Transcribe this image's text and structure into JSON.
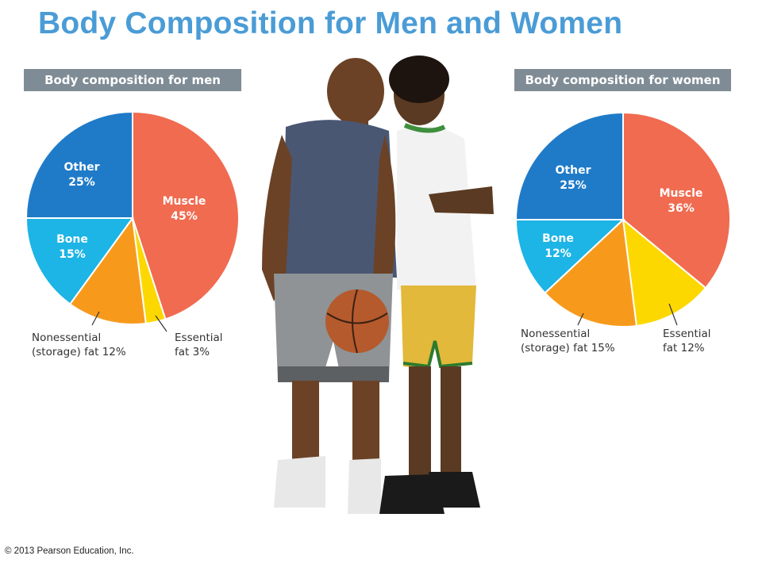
{
  "page": {
    "title": "Body Composition for Men and Women",
    "copyright": "© 2013 Pearson Education, Inc."
  },
  "colors": {
    "title": "#4a9cd6",
    "banner": "#7f8c95",
    "muscle": "#f06b50",
    "essential_fat": "#fcd800",
    "nonessential_fat": "#f79a1c",
    "bone": "#1db4e6",
    "other": "#1f7bc8"
  },
  "chart_data": [
    {
      "type": "pie",
      "title": "Body composition for men",
      "slices": [
        {
          "label": "Muscle",
          "value": 45,
          "text": "Muscle",
          "pct": "45%",
          "color": "#f06b50"
        },
        {
          "label": "Essential fat",
          "value": 3,
          "text": "Essential\nfat 3%",
          "color": "#fcd800"
        },
        {
          "label": "Nonessential (storage) fat",
          "value": 12,
          "text": "Nonessential\n(storage) fat 12%",
          "color": "#f79a1c"
        },
        {
          "label": "Bone",
          "value": 15,
          "text": "Bone",
          "pct": "15%",
          "color": "#1db4e6"
        },
        {
          "label": "Other",
          "value": 25,
          "text": "Other",
          "pct": "25%",
          "color": "#1f7bc8"
        }
      ]
    },
    {
      "type": "pie",
      "title": "Body composition for women",
      "slices": [
        {
          "label": "Muscle",
          "value": 36,
          "text": "Muscle",
          "pct": "36%",
          "color": "#f06b50"
        },
        {
          "label": "Essential fat",
          "value": 12,
          "text": "Essential\nfat 12%",
          "color": "#fcd800"
        },
        {
          "label": "Nonessential (storage) fat",
          "value": 15,
          "text": "Nonessential\n(storage) fat 15%",
          "color": "#f79a1c"
        },
        {
          "label": "Bone",
          "value": 12,
          "text": "Bone",
          "pct": "12%",
          "color": "#1db4e6"
        },
        {
          "label": "Other",
          "value": 25,
          "text": "Other",
          "pct": "25%",
          "color": "#1f7bc8"
        }
      ]
    }
  ],
  "labels": {
    "men": {
      "muscle": "Muscle",
      "muscle_pct": "45%",
      "other": "Other",
      "other_pct": "25%",
      "bone": "Bone",
      "bone_pct": "15%",
      "nonessential_1": "Nonessential",
      "nonessential_2": "(storage) fat 12%",
      "essential_1": "Essential",
      "essential_2": "fat 3%"
    },
    "women": {
      "muscle": "Muscle",
      "muscle_pct": "36%",
      "other": "Other",
      "other_pct": "25%",
      "bone": "Bone",
      "bone_pct": "12%",
      "nonessential_1": "Nonessential",
      "nonessential_2": "(storage) fat 15%",
      "essential_1": "Essential",
      "essential_2": "fat 12%"
    }
  }
}
